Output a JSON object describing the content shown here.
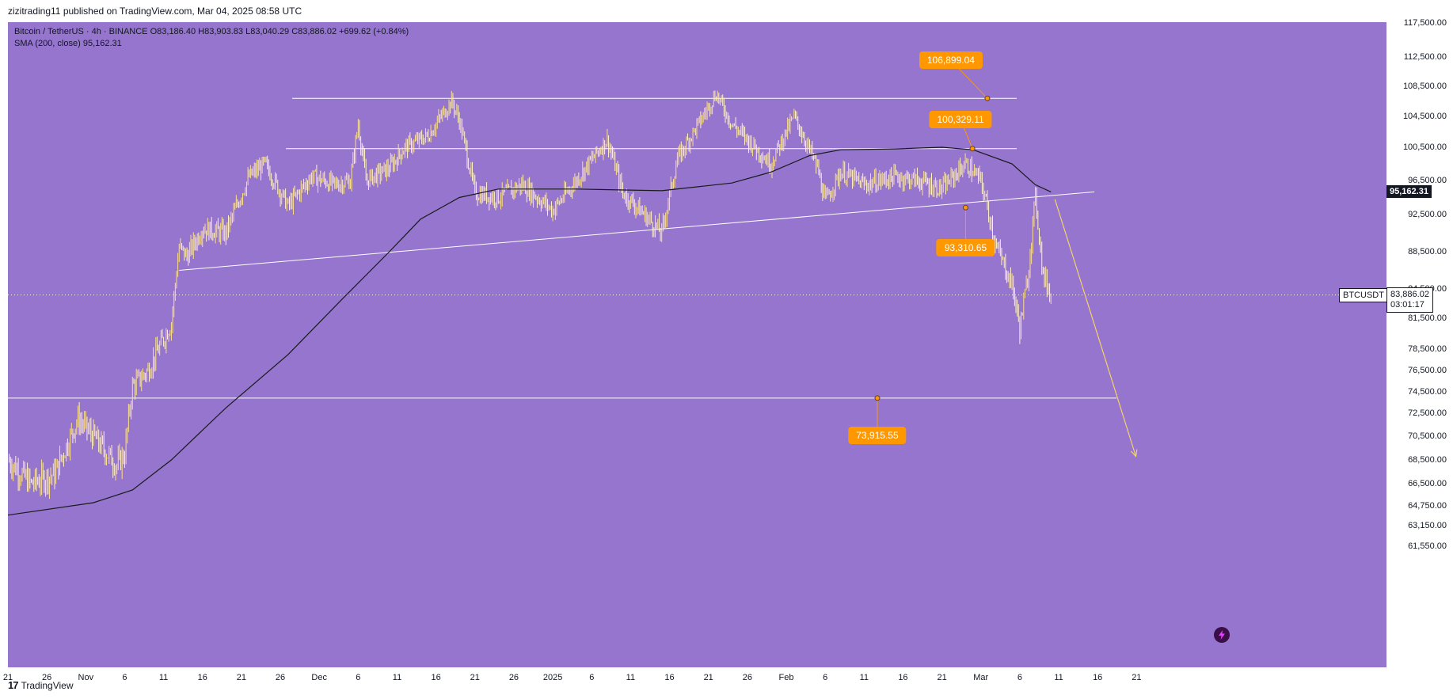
{
  "publisher_line": "zizitrading11 published on TradingView.com, Mar 04, 2025 08:58 UTC",
  "header": {
    "symbol_line": "Bitcoin / TetherUS · 4h · BINANCE",
    "ohlc": "O83,186.40 H83,903.83 L83,040.29 C83,886.02 +699.62 (+0.84%)",
    "sma_label": "SMA (200, close)",
    "sma_value": "95,162.31"
  },
  "footer": {
    "logo_text": "TradingView"
  },
  "chart_data": {
    "type": "line",
    "title": "Bitcoin / TetherUS · 4h · BINANCE",
    "colors": {
      "background": "#9575cd",
      "candles": "#ffe082",
      "sma": "#1a1a1a",
      "levels": "#ffffff",
      "callout": "#ff9800",
      "arrow": "#f3d36b"
    },
    "y_ticks": [
      "117,500.00",
      "112,500.00",
      "108,500.00",
      "104,500.00",
      "100,500.00",
      "96,500.00",
      "92,500.00",
      "88,500.00",
      "84,500.00",
      "81,500.00",
      "78,500.00",
      "76,500.00",
      "74,500.00",
      "72,500.00",
      "70,500.00",
      "68,500.00",
      "66,500.00",
      "64,750.00",
      "63,150.00",
      "61,550.00"
    ],
    "x_ticks": [
      "21",
      "26",
      "Nov",
      "6",
      "11",
      "16",
      "21",
      "26",
      "Dec",
      "6",
      "11",
      "16",
      "21",
      "26",
      "2025",
      "6",
      "11",
      "16",
      "21",
      "26",
      "Feb",
      "6",
      "11",
      "16",
      "21",
      "Mar",
      "6",
      "11",
      "16",
      "21"
    ],
    "price_path": [
      [
        "2024-10-21",
        68500
      ],
      [
        "2024-10-24",
        66500
      ],
      [
        "2024-10-27",
        67300
      ],
      [
        "2024-10-30",
        72000
      ],
      [
        "2024-11-01",
        70500
      ],
      [
        "2024-11-04",
        68000
      ],
      [
        "2024-11-05",
        69000
      ],
      [
        "2024-11-06",
        75000
      ],
      [
        "2024-11-08",
        76500
      ],
      [
        "2024-11-11",
        81000
      ],
      [
        "2024-11-12",
        89000
      ],
      [
        "2024-11-13",
        88000
      ],
      [
        "2024-11-15",
        91000
      ],
      [
        "2024-11-18",
        90500
      ],
      [
        "2024-11-21",
        97000
      ],
      [
        "2024-11-23",
        98500
      ],
      [
        "2024-11-26",
        93500
      ],
      [
        "2024-11-29",
        97000
      ],
      [
        "2024-12-02",
        96000
      ],
      [
        "2024-12-04",
        96500
      ],
      [
        "2024-12-05",
        103500
      ],
      [
        "2024-12-06",
        96500
      ],
      [
        "2024-12-09",
        98000
      ],
      [
        "2024-12-11",
        100500
      ],
      [
        "2024-12-14",
        102000
      ],
      [
        "2024-12-17",
        106500
      ],
      [
        "2024-12-18",
        104000
      ],
      [
        "2024-12-20",
        95000
      ],
      [
        "2024-12-23",
        94500
      ],
      [
        "2024-12-26",
        96000
      ],
      [
        "2024-12-30",
        93000
      ],
      [
        "2025-01-02",
        96500
      ],
      [
        "2025-01-06",
        101500
      ],
      [
        "2025-01-08",
        95000
      ],
      [
        "2025-01-13",
        90500
      ],
      [
        "2025-01-15",
        99000
      ],
      [
        "2025-01-18",
        104000
      ],
      [
        "2025-01-20",
        107500
      ],
      [
        "2025-01-22",
        103500
      ],
      [
        "2025-01-27",
        98500
      ],
      [
        "2025-01-30",
        104500
      ],
      [
        "2025-02-02",
        98000
      ],
      [
        "2025-02-03",
        94000
      ],
      [
        "2025-02-05",
        97500
      ],
      [
        "2025-02-08",
        96000
      ],
      [
        "2025-02-12",
        97000
      ],
      [
        "2025-02-15",
        96500
      ],
      [
        "2025-02-18",
        95500
      ],
      [
        "2025-02-21",
        98500
      ],
      [
        "2025-02-23",
        96500
      ],
      [
        "2025-02-25",
        89000
      ],
      [
        "2025-02-27",
        85000
      ],
      [
        "2025-02-28",
        80500
      ],
      [
        "2025-03-01",
        85500
      ],
      [
        "2025-03-02",
        94500
      ],
      [
        "2025-03-03",
        86000
      ],
      [
        "2025-03-04",
        83886
      ]
    ],
    "sma200": [
      [
        "2024-10-21",
        64000
      ],
      [
        "2024-11-01",
        65000
      ],
      [
        "2024-11-06",
        66000
      ],
      [
        "2024-11-11",
        68500
      ],
      [
        "2024-11-18",
        73000
      ],
      [
        "2024-11-26",
        78000
      ],
      [
        "2024-12-03",
        83500
      ],
      [
        "2024-12-09",
        88500
      ],
      [
        "2024-12-13",
        92000
      ],
      [
        "2024-12-18",
        94500
      ],
      [
        "2024-12-23",
        95500
      ],
      [
        "2025-01-02",
        95500
      ],
      [
        "2025-01-13",
        95300
      ],
      [
        "2025-01-18",
        95800
      ],
      [
        "2025-01-22",
        96200
      ],
      [
        "2025-01-27",
        97500
      ],
      [
        "2025-02-01",
        99500
      ],
      [
        "2025-02-05",
        100200
      ],
      [
        "2025-02-12",
        100300
      ],
      [
        "2025-02-18",
        100500
      ],
      [
        "2025-02-22",
        100200
      ],
      [
        "2025-02-27",
        98500
      ],
      [
        "2025-03-02",
        96000
      ],
      [
        "2025-03-04",
        95162
      ]
    ],
    "horizontal_levels": [
      106899.04,
      100329.11,
      73915.55
    ],
    "support_trendline": [
      [
        "2024-11-12",
        86500
      ],
      [
        "2025-03-05",
        95162
      ]
    ],
    "projection_arrow": [
      [
        "2025-03-04",
        94300
      ],
      [
        "2025-03-14",
        68800
      ]
    ],
    "annotations": [
      {
        "label": "106,899.04",
        "date": "2025-02-22",
        "price": 106899.04
      },
      {
        "label": "100,329.11",
        "date": "2025-02-21",
        "price": 100329.11
      },
      {
        "label": "93,310.65",
        "date": "2025-02-19",
        "price": 93310.65
      },
      {
        "label": "73,915.55",
        "date": "2025-02-10",
        "price": 73915.55
      }
    ],
    "last_price": {
      "symbol": "BTCUSDT",
      "value": "83,886.02",
      "countdown": "03:01:17"
    },
    "sma_tag": "95,162.31"
  }
}
